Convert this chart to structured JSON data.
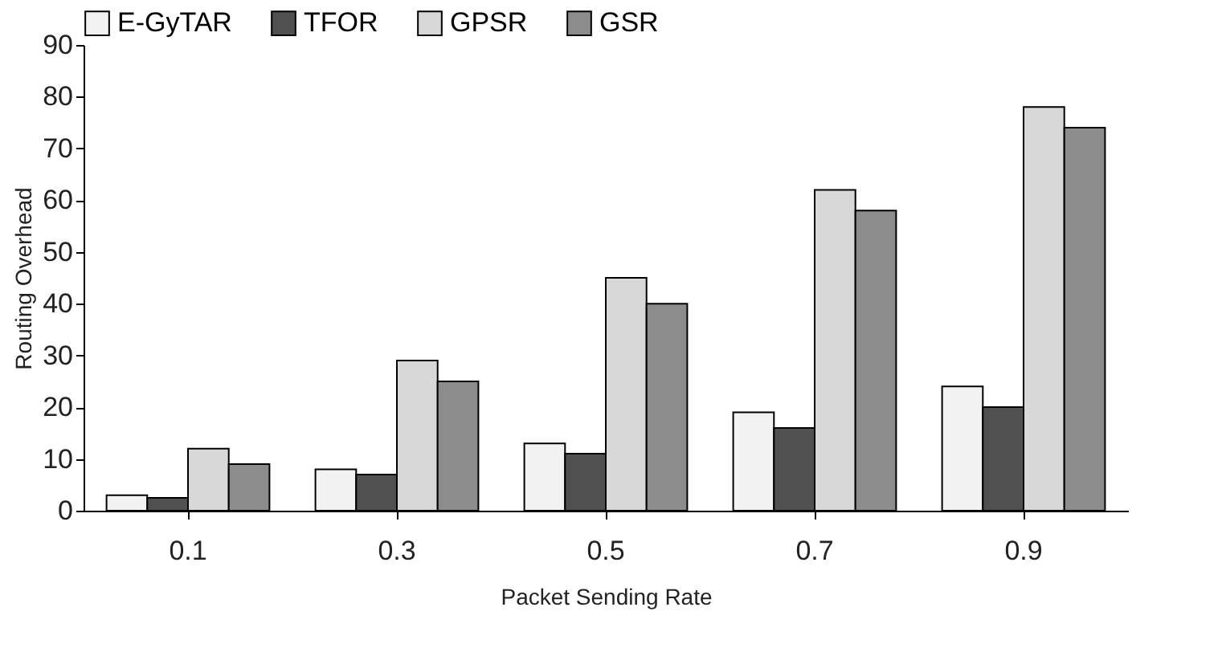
{
  "chart_data": {
    "type": "bar",
    "xlabel": "Packet Sending Rate",
    "ylabel": "Routing Overhead",
    "categories": [
      "0.1",
      "0.3",
      "0.5",
      "0.7",
      "0.9"
    ],
    "series": [
      {
        "name": "E-GyTAR",
        "color": "#f2f2f2",
        "values": [
          3,
          8,
          13,
          19,
          24
        ]
      },
      {
        "name": "TFOR",
        "color": "#505050",
        "values": [
          2.5,
          7,
          11,
          16,
          20
        ]
      },
      {
        "name": "GPSR",
        "color": "#d8d8d8",
        "values": [
          12,
          29,
          45,
          62,
          78
        ]
      },
      {
        "name": "GSR",
        "color": "#8c8c8c",
        "values": [
          9,
          25,
          40,
          58,
          74
        ]
      }
    ],
    "ylim": [
      0,
      90
    ],
    "yticks": [
      0,
      10,
      20,
      30,
      40,
      50,
      60,
      70,
      80,
      90
    ],
    "grid": false,
    "legend": "top"
  }
}
